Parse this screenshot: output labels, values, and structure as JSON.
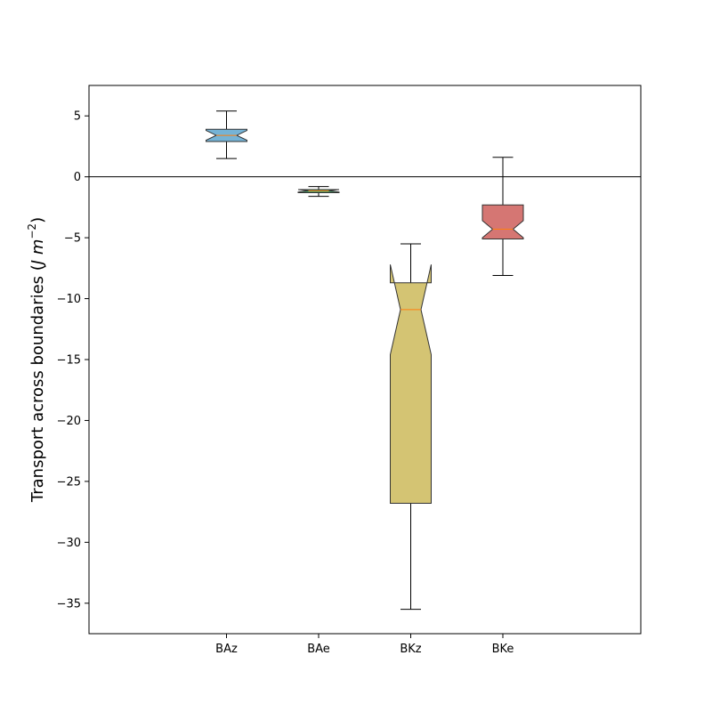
{
  "chart_data": {
    "type": "box",
    "notched": true,
    "ylabel_text": "Transport across boundaries (",
    "ylabel_unit_symbol": "J m",
    "ylabel_exponent": "−2",
    "ylabel_close": ")",
    "ylim": [
      -37.5,
      7.5
    ],
    "yticks": [
      5,
      0,
      -5,
      -10,
      -15,
      -20,
      -25,
      -30,
      -35
    ],
    "ytick_labels": [
      "5",
      "0",
      "−5",
      "−10",
      "−15",
      "−20",
      "−25",
      "−30",
      "−35"
    ],
    "categories": [
      "BAz",
      "BAe",
      "BKz",
      "BKe"
    ],
    "reference_line": 0,
    "boxes": [
      {
        "label": "BAz",
        "whisker_low": 1.5,
        "q1": 2.9,
        "median": 3.4,
        "q3": 3.9,
        "whisker_high": 5.4,
        "notch_low": 3.0,
        "notch_high": 3.8,
        "color": "#75b3d6"
      },
      {
        "label": "BAe",
        "whisker_low": -1.6,
        "q1": -1.3,
        "median": -1.15,
        "q3": -1.05,
        "whisker_high": -0.8,
        "notch_low": -1.25,
        "notch_high": -1.05,
        "color": "#4aa06b"
      },
      {
        "label": "BKz",
        "whisker_low": -35.5,
        "q1": -26.8,
        "median": -10.9,
        "q3": -8.7,
        "whisker_high": -5.5,
        "notch_low": -14.6,
        "notch_high": -7.2,
        "color": "#d4c473"
      },
      {
        "label": "BKe",
        "whisker_low": -8.1,
        "q1": -5.1,
        "median": -4.3,
        "q3": -2.3,
        "whisker_high": 1.6,
        "notch_low": -5.0,
        "notch_high": -3.6,
        "color": "#d57673"
      }
    ],
    "median_color": "#ff7f0e",
    "edge_color": "#333333",
    "grid": false
  }
}
